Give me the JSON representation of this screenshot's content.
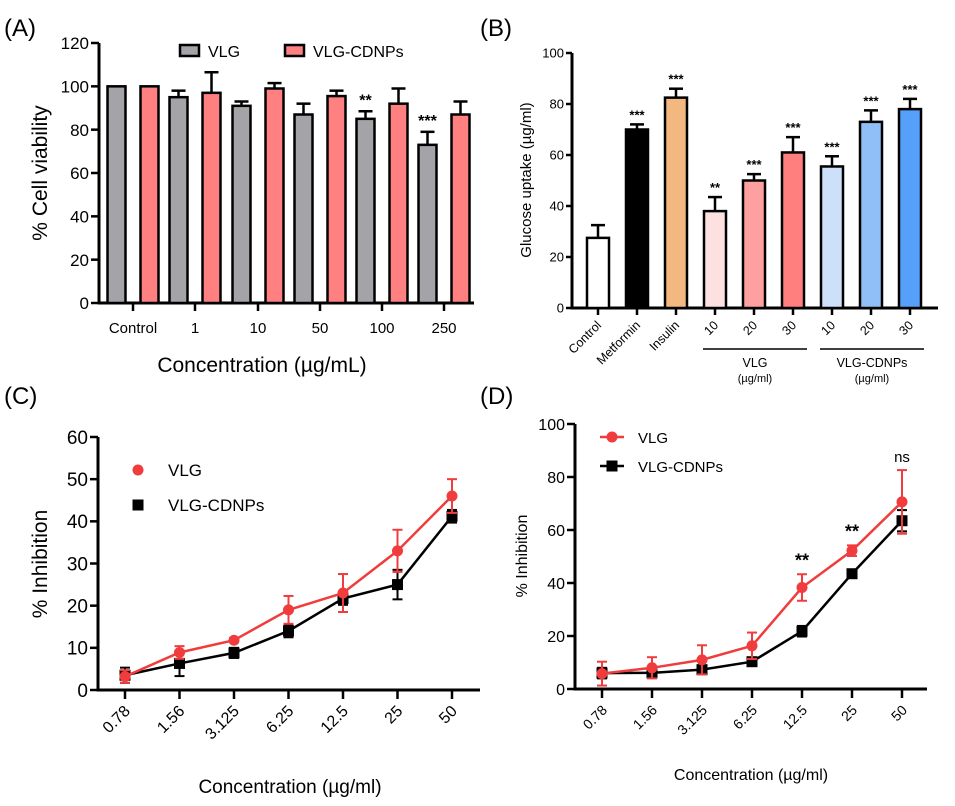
{
  "chart_data": [
    {
      "panel_label": "(A)",
      "type": "bar",
      "title": "",
      "xlabel": "Concentration (µg/mL)",
      "ylabel": "% Cell viability",
      "ylim": [
        0,
        120
      ],
      "yticks": [
        0,
        20,
        40,
        60,
        80,
        100,
        120
      ],
      "categories": [
        "Control",
        "1",
        "10",
        "50",
        "100",
        "250"
      ],
      "legend_position": "top-center",
      "series": [
        {
          "name": "VLG",
          "color": "#a3a3a8",
          "values": [
            100,
            95,
            91,
            87,
            85,
            73
          ],
          "errors": [
            0,
            3,
            2,
            5,
            3.5,
            6
          ],
          "annotations": [
            "",
            "",
            "",
            "",
            "**",
            "***"
          ]
        },
        {
          "name": "VLG-CDNPs",
          "color": "#ff8080",
          "values": [
            100,
            97,
            99,
            95.5,
            92,
            87
          ],
          "errors": [
            0,
            9.5,
            2.5,
            2.5,
            7,
            6
          ],
          "annotations": [
            "",
            "",
            "",
            "",
            "",
            ""
          ]
        }
      ]
    },
    {
      "panel_label": "(B)",
      "type": "bar",
      "title": "",
      "xlabel": "",
      "ylabel": "Glucose uptake (µg/ml)",
      "ylim": [
        0,
        100
      ],
      "yticks": [
        0,
        20,
        40,
        60,
        80,
        100
      ],
      "categories": [
        "Control",
        "Metformin",
        "Insulin",
        "10",
        "20",
        "30",
        "10",
        "20",
        "30"
      ],
      "values": [
        27.5,
        70,
        82.5,
        38,
        50,
        61,
        55.5,
        73,
        78
      ],
      "errors": [
        5,
        2,
        3.5,
        5.5,
        2.5,
        6,
        4,
        4.5,
        4
      ],
      "colors": [
        "#ffffff",
        "#000000",
        "#f2b880",
        "#fde0e0",
        "#ffa0a0",
        "#ff7f7f",
        "#cce0fa",
        "#90bff8",
        "#56a0fa"
      ],
      "annotations": [
        "",
        "***",
        "***",
        "**",
        "***",
        "***",
        "***",
        "***",
        "***"
      ],
      "groups": [
        {
          "label": "VLG",
          "unit": "(µg/ml)",
          "from": 3,
          "to": 5
        },
        {
          "label": "VLG-CDNPs",
          "unit": "(µg/ml)",
          "from": 6,
          "to": 8
        }
      ]
    },
    {
      "panel_label": "(C)",
      "type": "line",
      "title": "",
      "xlabel": "Concentration (µg/ml)",
      "ylabel": "% Inhibition",
      "ylim": [
        0,
        60
      ],
      "yticks": [
        0,
        10,
        20,
        30,
        40,
        50,
        60
      ],
      "x": [
        "0.78",
        "1.56",
        "3.125",
        "6.25",
        "12.5",
        "25",
        "50"
      ],
      "legend_position": "top-left",
      "legend_style": "markers-only",
      "series": [
        {
          "name": "VLG",
          "color": "#f03c3c",
          "marker": "circle",
          "values": [
            3.2,
            8.9,
            11.8,
            19,
            23,
            33,
            46
          ],
          "errors": [
            1.5,
            1.5,
            0.5,
            3.3,
            4.5,
            5,
            4
          ]
        },
        {
          "name": "VLG-CDNPs",
          "color": "#000000",
          "marker": "square",
          "values": [
            3.5,
            6.3,
            8.8,
            14,
            21.7,
            25,
            41.2
          ],
          "errors": [
            1.8,
            3,
            1.2,
            1.5,
            1.5,
            3.5,
            1.5
          ]
        }
      ],
      "annotations": []
    },
    {
      "panel_label": "(D)",
      "type": "line",
      "title": "",
      "xlabel": "Concentration (µg/ml)",
      "ylabel": "% Inhibition",
      "ylim": [
        0,
        100
      ],
      "yticks": [
        0,
        20,
        40,
        60,
        80,
        100
      ],
      "x": [
        "0.78",
        "1.56",
        "3.125",
        "6.25",
        "12.5",
        "25",
        "50"
      ],
      "legend_position": "top-left",
      "legend_style": "line-and-marker",
      "series": [
        {
          "name": "VLG",
          "color": "#f03c3c",
          "marker": "circle",
          "values": [
            5.8,
            8,
            11,
            16.3,
            38.3,
            52.2,
            70.6
          ],
          "errors": [
            4.5,
            4,
            5.5,
            5,
            5,
            2,
            12
          ]
        },
        {
          "name": "VLG-CDNPs",
          "color": "#000000",
          "marker": "square",
          "values": [
            6,
            6.1,
            7.3,
            10.3,
            21.8,
            43.5,
            63.5
          ],
          "errors": [
            2,
            1.5,
            1.5,
            1,
            2,
            1.5,
            4
          ]
        }
      ],
      "annotations": [
        "",
        "",
        "",
        "",
        "**",
        "**",
        "ns"
      ]
    }
  ]
}
